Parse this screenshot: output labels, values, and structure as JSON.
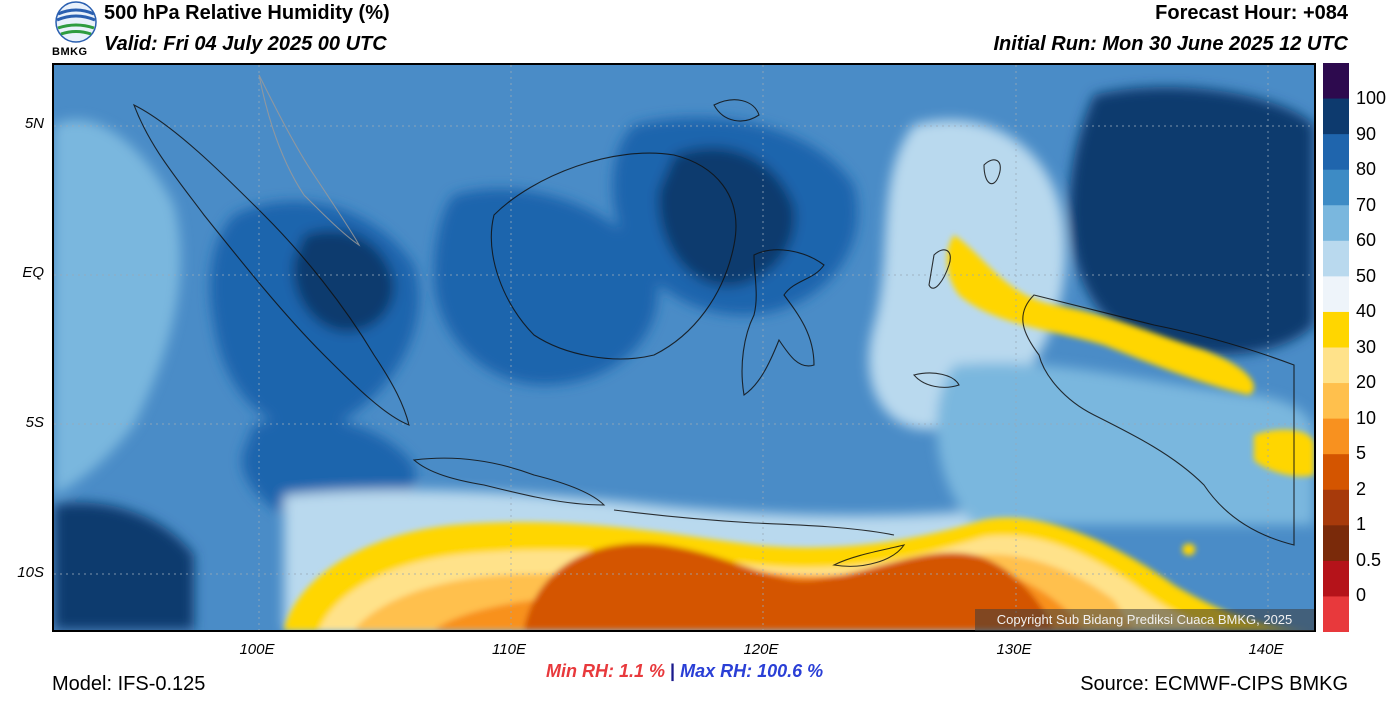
{
  "header": {
    "title": "500 hPa Relative Humidity (%)",
    "valid": "Valid: Fri 04 July 2025 00 UTC",
    "forecast_hour": "Forecast Hour: +084",
    "initial_run": "Initial Run: Mon 30 June 2025 12 UTC"
  },
  "logo": {
    "text": "BMKG",
    "icon": "bmkg-logo"
  },
  "axes": {
    "lat_labels": [
      "5N",
      "EQ",
      "5S",
      "10S"
    ],
    "lon_labels": [
      "100E",
      "110E",
      "120E",
      "130E",
      "140E"
    ]
  },
  "colorbar": {
    "labels": [
      "100",
      "90",
      "80",
      "70",
      "60",
      "50",
      "40",
      "30",
      "20",
      "10",
      "5",
      "2",
      "1",
      "0.5",
      "0"
    ],
    "colors": [
      "#2d0a4e",
      "#0d3a6e",
      "#1f65ad",
      "#3d8bc5",
      "#7ab7de",
      "#b9d9ee",
      "#eef4fa",
      "#ffd600",
      "#ffe28a",
      "#ffc04d",
      "#f8911f",
      "#d45500",
      "#a73a0b",
      "#7a2a0a",
      "#b5131a",
      "#e8393c"
    ]
  },
  "stats": {
    "min_label": "Min RH:",
    "min_value": "1.1 %",
    "separator": "|",
    "max_label": "Max RH:",
    "max_value": "100.6 %"
  },
  "footer": {
    "model": "Model: IFS-0.125",
    "source": "Source: ECMWF-CIPS BMKG",
    "copyright": "Copyright Sub Bidang Prediksi Cuaca BMKG, 2025"
  }
}
